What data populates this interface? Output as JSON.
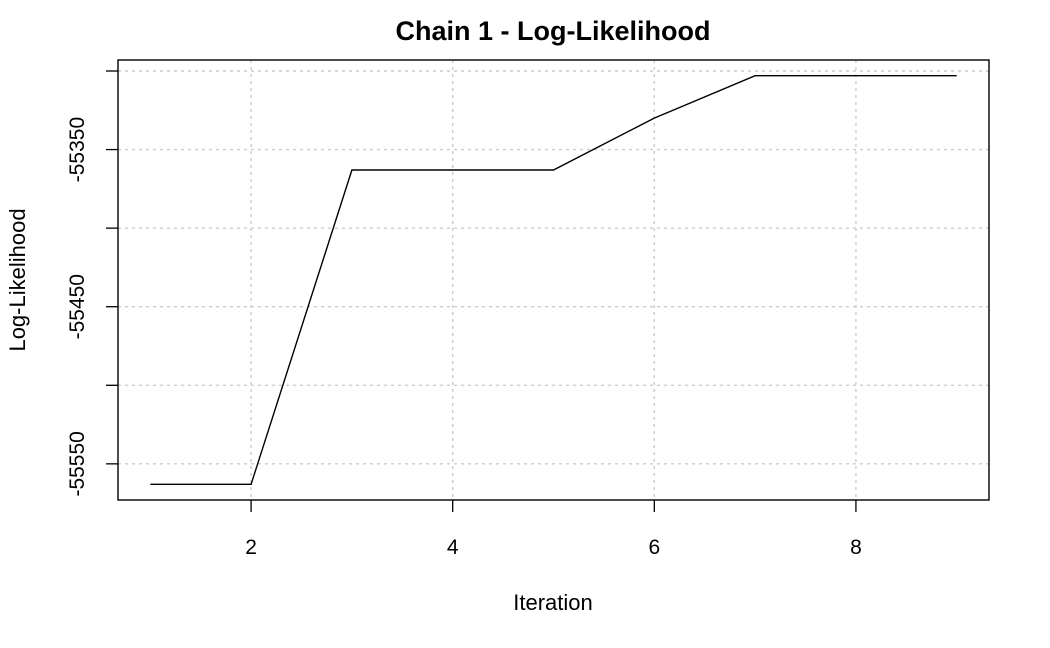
{
  "chart_data": {
    "type": "line",
    "title": "Chain 1 - Log-Likelihood",
    "xlabel": "Iteration",
    "ylabel": "Log-Likelihood",
    "x": [
      1,
      2,
      3,
      4,
      5,
      6,
      7,
      8,
      9
    ],
    "series": [
      {
        "values": [
          -55563,
          -55563,
          -55363,
          -55363,
          -55363,
          -55330,
          -55303,
          -55303,
          -55303
        ]
      }
    ],
    "xlim": [
      0.68,
      9.32
    ],
    "ylim": [
      -55573,
      -55293
    ],
    "x_ticks": [
      2,
      4,
      6,
      8
    ],
    "x_tick_labels": [
      "2",
      "4",
      "6",
      "8"
    ],
    "y_ticks": [
      -55550,
      -55450,
      -55350
    ],
    "y_tick_labels": [
      "-55550",
      "-55450",
      "-55350"
    ],
    "y_grid": [
      -55550,
      -55500,
      -55450,
      -55400,
      -55350,
      -55300
    ],
    "grid": true,
    "legend": "none",
    "colors": {
      "line": "#000000",
      "grid": "#cccccc"
    }
  }
}
